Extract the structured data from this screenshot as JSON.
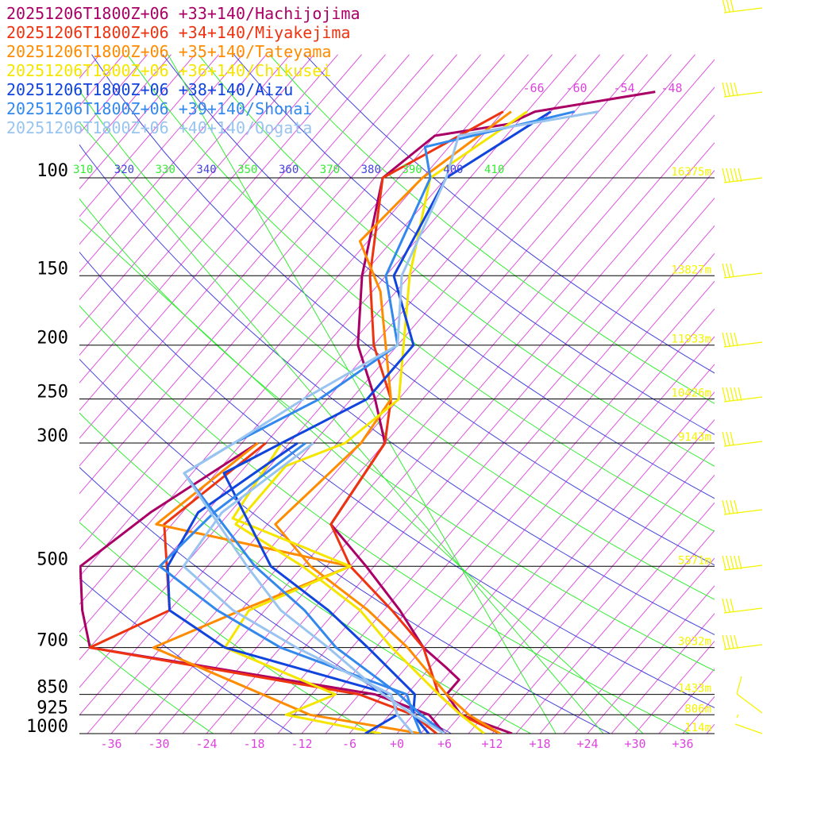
{
  "chart_data": {
    "type": "line",
    "title": "",
    "xlabel": "",
    "ylabel": "",
    "temperature_ticks": [
      -36,
      -30,
      -24,
      -18,
      -12,
      -6,
      0,
      6,
      12,
      18,
      24,
      30,
      36
    ],
    "temperature_tick_labels": [
      "-36",
      "-30",
      "-24",
      "-18",
      "-12",
      "-6",
      "+0",
      "+6",
      "+12",
      "+18",
      "+24",
      "+30",
      "+36"
    ],
    "xlim": [
      -40,
      40
    ],
    "pressure_levels": [
      100,
      150,
      200,
      250,
      300,
      500,
      700,
      850,
      925,
      1000
    ],
    "pressure_labels": [
      "100",
      "150",
      "200",
      "250",
      "300",
      "500",
      "700",
      "850",
      "925",
      "1000"
    ],
    "ylim": [
      1000,
      100
    ],
    "y_scale": "log",
    "mixing_ratio_labels": [
      "-66",
      "-60",
      "-54",
      "-48"
    ],
    "theta_labels": [
      {
        "text": "310",
        "color": "#33ee33"
      },
      {
        "text": "320",
        "color": "#4444dd"
      },
      {
        "text": "330",
        "color": "#33ee33"
      },
      {
        "text": "340",
        "color": "#4444dd"
      },
      {
        "text": "350",
        "color": "#33ee33"
      },
      {
        "text": "360",
        "color": "#4444dd"
      },
      {
        "text": "370",
        "color": "#33ee33"
      },
      {
        "text": "380",
        "color": "#4444dd"
      },
      {
        "text": "390",
        "color": "#33ee33"
      },
      {
        "text": "400",
        "color": "#4444dd"
      },
      {
        "text": "410",
        "color": "#33ee33"
      }
    ],
    "height_labels": [
      {
        "p": 100,
        "text": "16375m"
      },
      {
        "p": 150,
        "text": "13827m"
      },
      {
        "p": 200,
        "text": "11933m"
      },
      {
        "p": 250,
        "text": "10426m"
      },
      {
        "p": 300,
        "text": "9143m"
      },
      {
        "p": 500,
        "text": "5571m"
      },
      {
        "p": 700,
        "text": "3032m"
      },
      {
        "p": 850,
        "text": "1433m"
      },
      {
        "p": 925,
        "text": "806m"
      },
      {
        "p": 1000,
        "text": "114m"
      }
    ],
    "series": [
      {
        "name": "20251206T1800Z+06 +33+140/Hachijojima",
        "color": "#aa0066",
        "temperature": [
          {
            "p": 70,
            "t": -37
          },
          {
            "p": 76,
            "t": -50
          },
          {
            "p": 80,
            "t": -52
          },
          {
            "p": 84,
            "t": -60
          },
          {
            "p": 100,
            "t": -62
          },
          {
            "p": 150,
            "t": -54
          },
          {
            "p": 200,
            "t": -47
          },
          {
            "p": 250,
            "t": -39
          },
          {
            "p": 300,
            "t": -33
          },
          {
            "p": 420,
            "t": -31
          },
          {
            "p": 500,
            "t": -22
          },
          {
            "p": 600,
            "t": -13
          },
          {
            "p": 700,
            "t": -6
          },
          {
            "p": 760,
            "t": -1
          },
          {
            "p": 800,
            "t": 2
          },
          {
            "p": 850,
            "t": 2
          },
          {
            "p": 925,
            "t": 6
          },
          {
            "p": 1000,
            "t": 14.5
          }
        ],
        "dewpoint": [
          {
            "p": 300,
            "t": -49
          },
          {
            "p": 400,
            "t": -55
          },
          {
            "p": 500,
            "t": -58
          },
          {
            "p": 600,
            "t": -53
          },
          {
            "p": 700,
            "t": -48
          },
          {
            "p": 850,
            "t": -7
          },
          {
            "p": 925,
            "t": 2
          },
          {
            "p": 1000,
            "t": 6
          }
        ]
      },
      {
        "name": "20251206T1800Z+06 +34+140/Miyakejima",
        "color": "#ee3311",
        "temperature": [
          {
            "p": 76,
            "t": -54
          },
          {
            "p": 100,
            "t": -62
          },
          {
            "p": 150,
            "t": -53
          },
          {
            "p": 200,
            "t": -45
          },
          {
            "p": 250,
            "t": -37
          },
          {
            "p": 300,
            "t": -33
          },
          {
            "p": 420,
            "t": -31
          },
          {
            "p": 500,
            "t": -24
          },
          {
            "p": 600,
            "t": -14
          },
          {
            "p": 700,
            "t": -6
          },
          {
            "p": 850,
            "t": 1
          },
          {
            "p": 925,
            "t": 6
          },
          {
            "p": 1000,
            "t": 13
          }
        ],
        "dewpoint": [
          {
            "p": 300,
            "t": -48
          },
          {
            "p": 420,
            "t": -52
          },
          {
            "p": 600,
            "t": -42
          },
          {
            "p": 700,
            "t": -48
          },
          {
            "p": 850,
            "t": -9
          },
          {
            "p": 925,
            "t": 0
          },
          {
            "p": 1000,
            "t": 5
          }
        ]
      },
      {
        "name": "20251206T1800Z+06 +35+140/Tateyama",
        "color": "#ff8c00",
        "temperature": [
          {
            "p": 76,
            "t": -53
          },
          {
            "p": 100,
            "t": -57
          },
          {
            "p": 130,
            "t": -58
          },
          {
            "p": 160,
            "t": -50
          },
          {
            "p": 250,
            "t": -37
          },
          {
            "p": 300,
            "t": -36
          },
          {
            "p": 420,
            "t": -38
          },
          {
            "p": 500,
            "t": -29
          },
          {
            "p": 600,
            "t": -17
          },
          {
            "p": 700,
            "t": -8
          },
          {
            "p": 850,
            "t": 2
          },
          {
            "p": 925,
            "t": 7
          },
          {
            "p": 1000,
            "t": 13
          }
        ],
        "dewpoint": [
          {
            "p": 300,
            "t": -49
          },
          {
            "p": 420,
            "t": -53
          },
          {
            "p": 500,
            "t": -24
          },
          {
            "p": 600,
            "t": -33
          },
          {
            "p": 700,
            "t": -40
          },
          {
            "p": 925,
            "t": -13
          },
          {
            "p": 1000,
            "t": 3
          }
        ]
      },
      {
        "name": "20251206T1800Z+06 +36+140/Chikusei",
        "color": "#f5e600",
        "temperature": [
          {
            "p": 76,
            "t": -51
          },
          {
            "p": 100,
            "t": -56
          },
          {
            "p": 150,
            "t": -48
          },
          {
            "p": 250,
            "t": -36
          },
          {
            "p": 300,
            "t": -38
          },
          {
            "p": 330,
            "t": -43
          },
          {
            "p": 420,
            "t": -43
          },
          {
            "p": 500,
            "t": -30
          },
          {
            "p": 600,
            "t": -18
          },
          {
            "p": 700,
            "t": -10
          },
          {
            "p": 850,
            "t": 1
          },
          {
            "p": 925,
            "t": 6
          },
          {
            "p": 1000,
            "t": 11
          }
        ],
        "dewpoint": [
          {
            "p": 300,
            "t": -46
          },
          {
            "p": 410,
            "t": -44
          },
          {
            "p": 500,
            "t": -24
          },
          {
            "p": 600,
            "t": -32
          },
          {
            "p": 700,
            "t": -31
          },
          {
            "p": 850,
            "t": -12
          },
          {
            "p": 925,
            "t": -16
          },
          {
            "p": 1000,
            "t": -2
          }
        ]
      },
      {
        "name": "20251206T1800Z+06 +38+140/Aizu",
        "color": "#1144dd",
        "temperature": [
          {
            "p": 76,
            "t": -48
          },
          {
            "p": 100,
            "t": -54
          },
          {
            "p": 150,
            "t": -50
          },
          {
            "p": 200,
            "t": -40
          },
          {
            "p": 250,
            "t": -40
          },
          {
            "p": 300,
            "t": -46
          },
          {
            "p": 340,
            "t": -50
          },
          {
            "p": 500,
            "t": -34
          },
          {
            "p": 600,
            "t": -22
          },
          {
            "p": 700,
            "t": -13
          },
          {
            "p": 850,
            "t": -2
          },
          {
            "p": 925,
            "t": 0
          },
          {
            "p": 1000,
            "t": 4
          }
        ],
        "dewpoint": [
          {
            "p": 300,
            "t": -44
          },
          {
            "p": 400,
            "t": -49
          },
          {
            "p": 500,
            "t": -47
          },
          {
            "p": 600,
            "t": -42
          },
          {
            "p": 700,
            "t": -31
          },
          {
            "p": 850,
            "t": -5
          },
          {
            "p": 925,
            "t": -2
          },
          {
            "p": 1000,
            "t": -4
          }
        ]
      },
      {
        "name": "20251206T1800Z+06 +39+140/Shonai",
        "color": "#3388ee",
        "temperature": [
          {
            "p": 76,
            "t": -45
          },
          {
            "p": 88,
            "t": -60
          },
          {
            "p": 100,
            "t": -56
          },
          {
            "p": 150,
            "t": -51
          },
          {
            "p": 200,
            "t": -42
          },
          {
            "p": 250,
            "t": -46
          },
          {
            "p": 300,
            "t": -52
          },
          {
            "p": 340,
            "t": -55
          },
          {
            "p": 500,
            "t": -36
          },
          {
            "p": 600,
            "t": -25
          },
          {
            "p": 700,
            "t": -17
          },
          {
            "p": 850,
            "t": -4
          },
          {
            "p": 925,
            "t": 1
          },
          {
            "p": 1000,
            "t": 6
          }
        ],
        "dewpoint": [
          {
            "p": 300,
            "t": -43
          },
          {
            "p": 400,
            "t": -47
          },
          {
            "p": 500,
            "t": -48
          },
          {
            "p": 600,
            "t": -36
          },
          {
            "p": 700,
            "t": -24
          },
          {
            "p": 850,
            "t": -3
          },
          {
            "p": 925,
            "t": 0
          },
          {
            "p": 1000,
            "t": 3
          }
        ]
      },
      {
        "name": "20251206T1800Z+06 +40+140/Oogata",
        "color": "#99c4f0",
        "temperature": [
          {
            "p": 76,
            "t": -42
          },
          {
            "p": 84,
            "t": -57
          },
          {
            "p": 100,
            "t": -54
          },
          {
            "p": 150,
            "t": -49
          },
          {
            "p": 200,
            "t": -42
          },
          {
            "p": 250,
            "t": -48
          },
          {
            "p": 300,
            "t": -52
          },
          {
            "p": 340,
            "t": -55
          },
          {
            "p": 500,
            "t": -37
          },
          {
            "p": 600,
            "t": -28
          },
          {
            "p": 700,
            "t": -18
          },
          {
            "p": 850,
            "t": -6
          },
          {
            "p": 925,
            "t": 0
          },
          {
            "p": 1000,
            "t": 6
          }
        ],
        "dewpoint": [
          {
            "p": 300,
            "t": -42
          },
          {
            "p": 400,
            "t": -46
          },
          {
            "p": 500,
            "t": -45
          },
          {
            "p": 600,
            "t": -34
          },
          {
            "p": 700,
            "t": -22
          },
          {
            "p": 850,
            "t": -5
          },
          {
            "p": 925,
            "t": -2
          },
          {
            "p": 1000,
            "t": 2
          }
        ]
      }
    ]
  }
}
